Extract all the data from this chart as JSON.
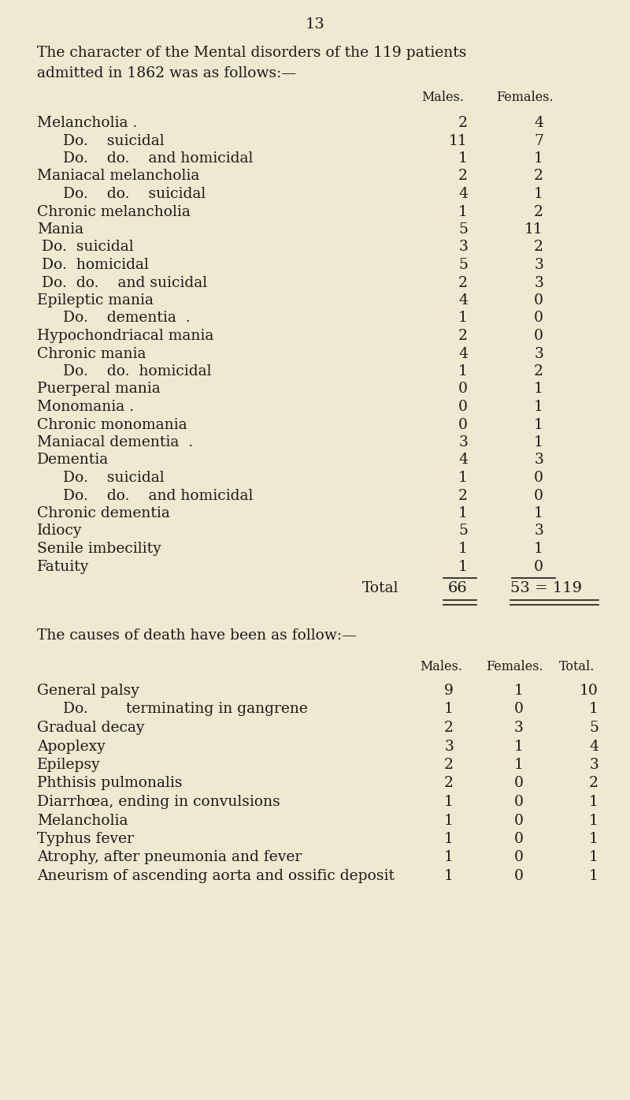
{
  "page_number": "13",
  "bg_color": "#f0e8d0",
  "text_color": "#1a1a1a",
  "intro_line1": "The character of the Mental disorders of the 119 patients",
  "intro_line2": "admitted in 1862 was as follows:—",
  "section1_col_headers": [
    "Males.",
    "Females."
  ],
  "section1_rows": [
    {
      "label": "Melancholia .",
      "dots": true,
      "indent": 0,
      "males": "2",
      "females": "4"
    },
    {
      "label": "Do.    suicidal",
      "dots": true,
      "indent": 1,
      "males": "11",
      "females": "7"
    },
    {
      "label": "Do.    do.    and homicidal",
      "dots": true,
      "indent": 1,
      "males": "1",
      "females": "1"
    },
    {
      "label": "Maniacal melancholia",
      "dots": true,
      "indent": 0,
      "males": "2",
      "females": "2"
    },
    {
      "label": "Do.    do.    suicidal",
      "dots": true,
      "indent": 1,
      "males": "4",
      "females": "1"
    },
    {
      "label": "Chronic melancholia",
      "dots": true,
      "indent": 0,
      "males": "1",
      "females": "2"
    },
    {
      "label": "Mania",
      "dots": true,
      "indent": 0,
      "males": "5",
      "females": "11"
    },
    {
      "label": " Do.  suicidal",
      "dots": true,
      "indent": 0,
      "males": "3",
      "females": "2"
    },
    {
      "label": " Do.  homicidal",
      "dots": true,
      "indent": 0,
      "males": "5",
      "females": "3"
    },
    {
      "label": " Do.  do.    and suicidal",
      "dots": true,
      "indent": 0,
      "males": "2",
      "females": "3"
    },
    {
      "label": "Epileptic mania",
      "dots": true,
      "indent": 0,
      "males": "4",
      "females": "0"
    },
    {
      "label": "Do.    dementia  .",
      "dots": true,
      "indent": 1,
      "males": "1",
      "females": "0"
    },
    {
      "label": "Hypochondriacal mania",
      "dots": true,
      "indent": 0,
      "males": "2",
      "females": "0"
    },
    {
      "label": "Chronic mania",
      "dots": true,
      "indent": 0,
      "males": "4",
      "females": "3"
    },
    {
      "label": "Do.    do.  homicidal",
      "dots": true,
      "indent": 1,
      "males": "1",
      "females": "2"
    },
    {
      "label": "Puerperal mania",
      "dots": true,
      "indent": 0,
      "males": "0",
      "females": "1"
    },
    {
      "label": "Monomania .",
      "dots": true,
      "indent": 0,
      "males": "0",
      "females": "1"
    },
    {
      "label": "Chronic monomania",
      "dots": true,
      "indent": 0,
      "males": "0",
      "females": "1"
    },
    {
      "label": "Maniacal dementia  .",
      "dots": true,
      "indent": 0,
      "males": "3",
      "females": "1"
    },
    {
      "label": "Dementia",
      "dots": true,
      "indent": 0,
      "males": "4",
      "females": "3"
    },
    {
      "label": "Do.    suicidal",
      "dots": true,
      "indent": 1,
      "males": "1",
      "females": "0"
    },
    {
      "label": "Do.    do.    and homicidal",
      "dots": true,
      "indent": 1,
      "males": "2",
      "females": "0"
    },
    {
      "label": "Chronic dementia",
      "dots": true,
      "indent": 0,
      "males": "1",
      "females": "1"
    },
    {
      "label": "Idiocy",
      "dots": true,
      "indent": 0,
      "males": "5",
      "females": "3"
    },
    {
      "label": "Senile imbecility",
      "dots": true,
      "indent": 0,
      "males": "1",
      "females": "1"
    },
    {
      "label": "Fatuity",
      "dots": true,
      "indent": 0,
      "males": "1",
      "females": "0"
    }
  ],
  "section1_total_label": "Total",
  "section1_total_males": "66",
  "section1_total_females": "53 = 119",
  "section2_intro": "The causes of death have been as follow:—",
  "section2_col_headers": [
    "Males.",
    "Females.",
    "Total."
  ],
  "section2_rows": [
    {
      "label": "General palsy",
      "indent": 0,
      "males": "9",
      "females": "1",
      "total": "10"
    },
    {
      "label": "Do.        terminating in gangrene",
      "indent": 1,
      "males": "1",
      "females": "0",
      "total": "1"
    },
    {
      "label": "Gradual decay",
      "indent": 0,
      "males": "2",
      "females": "3",
      "total": "5"
    },
    {
      "label": "Apoplexy",
      "indent": 0,
      "males": "3",
      "females": "1",
      "total": "4"
    },
    {
      "label": "Epilepsy",
      "indent": 0,
      "males": "2",
      "females": "1",
      "total": "3"
    },
    {
      "label": "Phthisis pulmonalis",
      "indent": 0,
      "males": "2",
      "females": "0",
      "total": "2"
    },
    {
      "label": "Diarrhœa, ending in convulsions",
      "indent": 0,
      "males": "1",
      "females": "0",
      "total": "1"
    },
    {
      "label": "Melancholia",
      "indent": 0,
      "males": "1",
      "females": "0",
      "total": "1"
    },
    {
      "label": "Typhus fever",
      "indent": 0,
      "males": "1",
      "females": "0",
      "total": "1"
    },
    {
      "label": "Atrophy, after pneumonia and fever",
      "indent": 0,
      "males": "1",
      "females": "0",
      "total": "1"
    },
    {
      "label": "Aneurism of ascending aorta and ossific deposit",
      "indent": 0,
      "males": "1",
      "females": "0",
      "total": "1"
    }
  ]
}
